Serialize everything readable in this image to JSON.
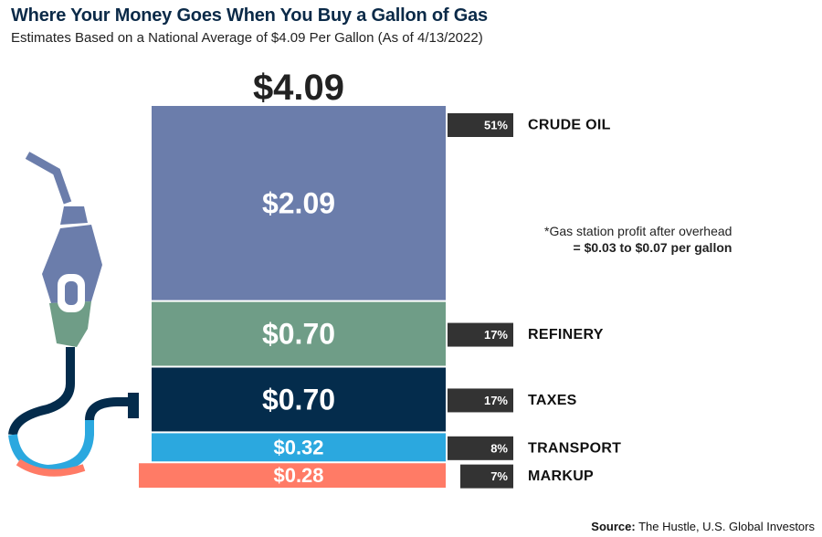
{
  "header": {
    "title": "Where Your Money Goes When You Buy a Gallon of Gas",
    "subtitle": "Estimates Based on a National Average of $4.09 Per Gallon (As of 4/13/2022)"
  },
  "note": {
    "line1": "*Gas station profit after overhead",
    "line2": "= $0.03 to $0.07 per gallon"
  },
  "source": {
    "label": "Source:",
    "text": " The Hustle, U.S. Global Investors"
  },
  "chart_data": {
    "type": "bar",
    "stacked": true,
    "total_label": "$4.09",
    "total": 4.09,
    "categories": [
      "CRUDE OIL",
      "REFINERY",
      "TAXES",
      "TRANSPORT",
      "MARKUP"
    ],
    "values": [
      2.09,
      0.7,
      0.7,
      0.32,
      0.28
    ],
    "value_labels": [
      "$2.09",
      "$0.70",
      "$0.70",
      "$0.32",
      "$0.28"
    ],
    "percent_labels": [
      "51%",
      "17%",
      "17%",
      "8%",
      "7%"
    ],
    "colors": [
      "#6b7dab",
      "#6f9d87",
      "#042c4c",
      "#2ba8df",
      "#ff7b66"
    ]
  },
  "icon": {
    "name": "gas-pump-nozzle-icon"
  }
}
